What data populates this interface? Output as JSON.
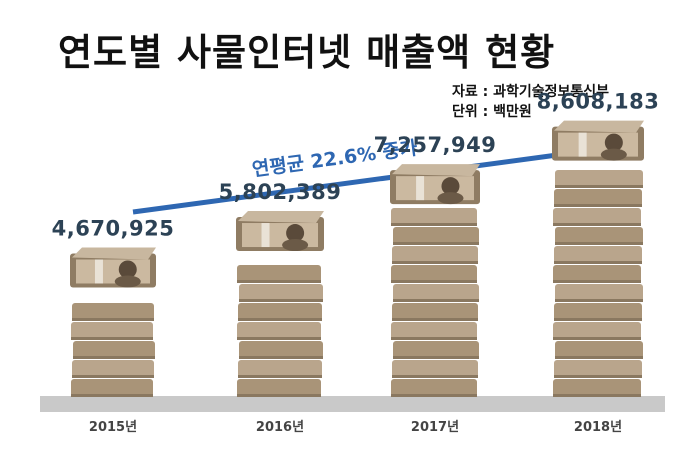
{
  "title": "연도별 사물인터넷 매출액 현황",
  "source": {
    "line1": "자료 : 과학기술정보통신부",
    "line2": "단위 : 백만원"
  },
  "growth_annotation": "연평균 22.6% 증가",
  "colors": {
    "arrow": "#2e67b2",
    "value_text": "#2c4255",
    "floor": "#c9c9c9",
    "money_tan": "#b9a58c"
  },
  "chart_data": {
    "type": "bar",
    "title": "연도별 사물인터넷 매출액 현황",
    "ylabel": "",
    "xlabel": "",
    "categories": [
      "2015년",
      "2016년",
      "2017년",
      "2018년"
    ],
    "values": [
      4670925,
      5802389,
      7257949,
      8608183
    ],
    "value_labels": [
      "4,670,925",
      "5,802,389",
      "7,257,949",
      "8,608,183"
    ],
    "ylim": [
      0,
      9000000
    ],
    "grid": false,
    "legend": "none"
  }
}
